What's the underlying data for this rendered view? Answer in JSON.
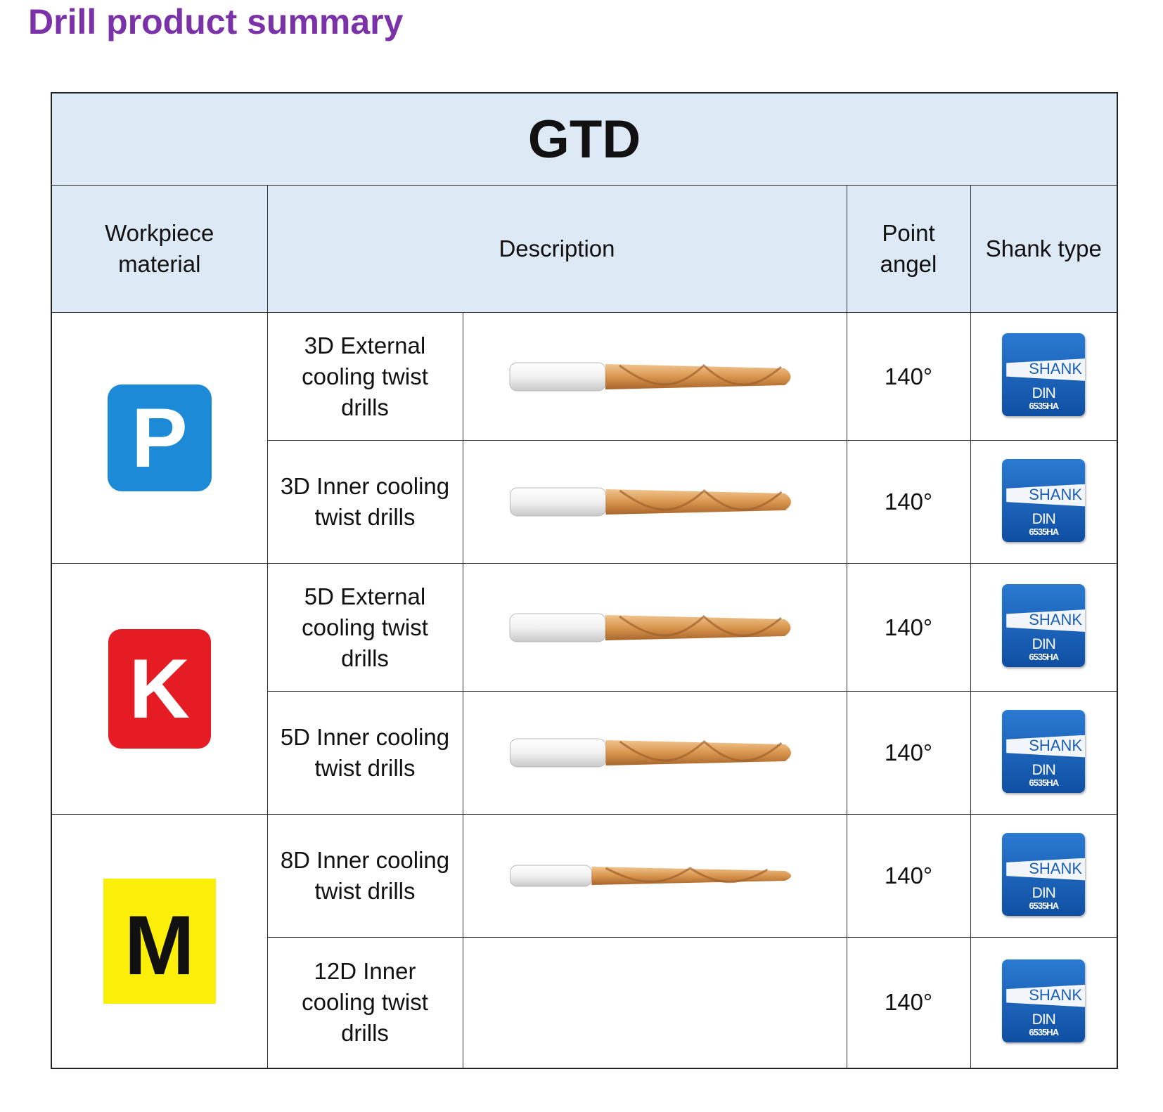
{
  "page": {
    "title": "Drill product summary"
  },
  "table": {
    "series_title": "GTD",
    "headers": {
      "workpiece": "Workpiece material",
      "description": "Description",
      "point_angle": "Point angel",
      "shank_type": "Shank type"
    },
    "materials": [
      {
        "letter": "P",
        "color": "#1c8ad6"
      },
      {
        "letter": "K",
        "color": "#e51c24"
      },
      {
        "letter": "M",
        "color": "#fbef0a"
      }
    ],
    "rows": [
      {
        "description": "3D External cooling twist drills",
        "point_angle": "140°",
        "has_image": true
      },
      {
        "description": "3D Inner cooling twist drills",
        "point_angle": "140°",
        "has_image": true
      },
      {
        "description": "5D External cooling twist drills",
        "point_angle": "140°",
        "has_image": true
      },
      {
        "description": "5D Inner cooling twist drills",
        "point_angle": "140°",
        "has_image": true
      },
      {
        "description": "8D Inner cooling twist drills",
        "point_angle": "140°",
        "has_image": true
      },
      {
        "description": "12D Inner cooling twist drills",
        "point_angle": "140°",
        "has_image": false
      }
    ],
    "shank_icon": {
      "word": "SHANK",
      "standard": "DIN",
      "code": "6535HA"
    }
  },
  "colors": {
    "title": "#7b32a8",
    "header_bg": "#dde9f5",
    "drill_coating": "#d9964f",
    "drill_shank": "#f0f0f0",
    "shank_badge": "#1a5fb4"
  }
}
